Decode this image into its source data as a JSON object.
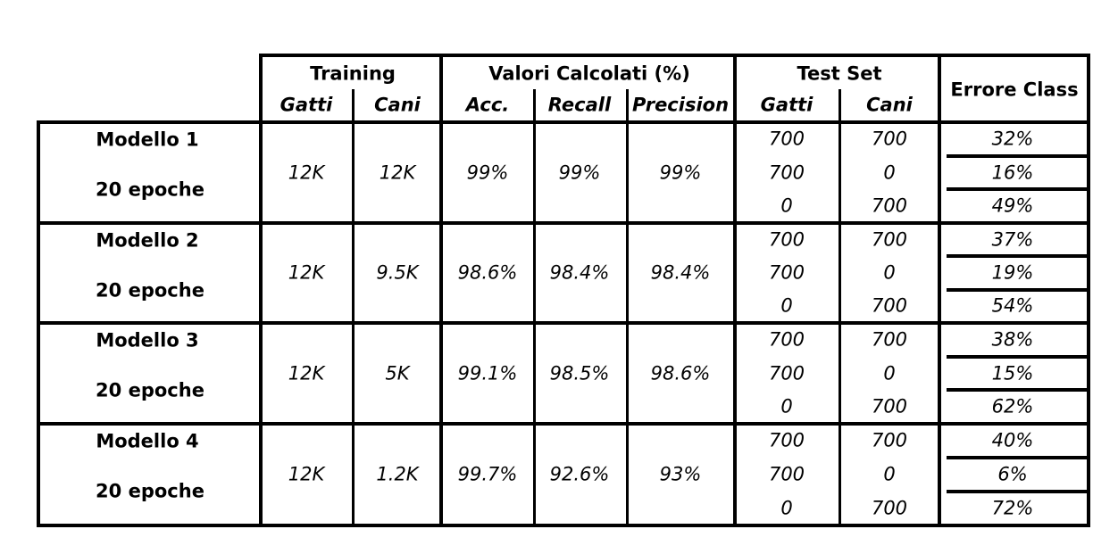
{
  "headers": {
    "training": "Training",
    "valori": "Valori Calcolati (%)",
    "test_set": "Test Set",
    "errore": "Errore Class",
    "sub": [
      "Gatti",
      "Cani",
      "Acc.",
      "Recall",
      "Precision",
      "Gatti",
      "Cani"
    ]
  },
  "models": [
    {
      "name": "Modello 1",
      "epochs": "20 epoche",
      "train_gatti": "12K",
      "train_cani": "12K",
      "acc": "99%",
      "recall": "99%",
      "precision": "99%",
      "tests": [
        {
          "gatti": "700",
          "cani": "700",
          "errore": "32%"
        },
        {
          "gatti": "700",
          "cani": "0",
          "errore": "16%"
        },
        {
          "gatti": "0",
          "cani": "700",
          "errore": "49%"
        }
      ]
    },
    {
      "name": "Modello 2",
      "epochs": "20 epoche",
      "train_gatti": "12K",
      "train_cani": "9.5K",
      "acc": "98.6%",
      "recall": "98.4%",
      "precision": "98.4%",
      "tests": [
        {
          "gatti": "700",
          "cani": "700",
          "errore": "37%"
        },
        {
          "gatti": "700",
          "cani": "0",
          "errore": "19%"
        },
        {
          "gatti": "0",
          "cani": "700",
          "errore": "54%"
        }
      ]
    },
    {
      "name": "Modello 3",
      "epochs": "20 epoche",
      "train_gatti": "12K",
      "train_cani": "5K",
      "acc": "99.1%",
      "recall": "98.5%",
      "precision": "98.6%",
      "tests": [
        {
          "gatti": "700",
          "cani": "700",
          "errore": "38%"
        },
        {
          "gatti": "700",
          "cani": "0",
          "errore": "15%"
        },
        {
          "gatti": "0",
          "cani": "700",
          "errore": "62%"
        }
      ]
    },
    {
      "name": "Modello 4",
      "epochs": "20 epoche",
      "train_gatti": "12K",
      "train_cani": "1.2K",
      "acc": "99.7%",
      "recall": "92.6%",
      "precision": "93%",
      "tests": [
        {
          "gatti": "700",
          "cani": "700",
          "errore": "40%"
        },
        {
          "gatti": "700",
          "cani": "0",
          "errore": "6%"
        },
        {
          "gatti": "0",
          "cani": "700",
          "errore": "72%"
        }
      ]
    }
  ]
}
